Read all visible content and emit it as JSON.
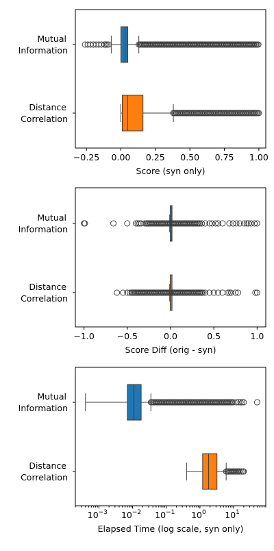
{
  "colors": {
    "mutual": "#1f77b4",
    "distance": "#ff7f0e",
    "line": "#3d3d3d"
  },
  "chart_data": [
    {
      "type": "box",
      "xlabel": "Score (syn only)",
      "xscale": "linear",
      "xlim": [
        -0.33,
        1.05
      ],
      "ticks": [
        -0.25,
        0.0,
        0.25,
        0.5,
        0.75,
        1.0
      ],
      "tick_labels": [
        "−0.25",
        "0.00",
        "0.25",
        "0.50",
        "0.75",
        "1.00"
      ],
      "categories": [
        {
          "label_l1": "Mutual",
          "label_l2": "Information",
          "color": "#1f77b4",
          "whisker_low": -0.07,
          "q1": 0.0,
          "median": 0.03,
          "q3": 0.05,
          "whisker_high": 0.13,
          "outliers_low": [
            -0.26,
            -0.24,
            -0.22,
            -0.2,
            -0.18,
            -0.16,
            -0.14,
            -0.12,
            -0.11,
            -0.1,
            -0.09
          ],
          "outliers_dense": [
            0.13,
            1.0
          ]
        },
        {
          "label_l1": "Distance",
          "label_l2": "Correlation",
          "color": "#ff7f0e",
          "whisker_low": 0.0,
          "q1": 0.01,
          "median": 0.05,
          "q3": 0.16,
          "whisker_high": 0.38,
          "outliers_low": [],
          "outliers_dense": [
            0.38,
            1.0
          ]
        }
      ]
    },
    {
      "type": "box",
      "xlabel": "Score Diff (orig - syn)",
      "xscale": "linear",
      "xlim": [
        -1.1,
        1.1
      ],
      "ticks": [
        -1.0,
        -0.5,
        0.0,
        0.5,
        1.0
      ],
      "tick_labels": [
        "−1.0",
        "−0.5",
        "0.0",
        "0.5",
        "1.0"
      ],
      "categories": [
        {
          "label_l1": "Mutual",
          "label_l2": "Information",
          "color": "#1f77b4",
          "whisker_low": -0.01,
          "q1": -0.003,
          "median": 0.0,
          "q3": 0.003,
          "whisker_high": 0.01,
          "outliers_low": [
            -1.0,
            -0.99,
            -0.66,
            -0.5,
            -0.4,
            -0.38,
            -0.36,
            -0.34,
            -0.3,
            -0.28
          ],
          "outliers_high": [
            0.36,
            0.4,
            0.45,
            0.48,
            0.52,
            0.55,
            0.6,
            0.68,
            0.72,
            0.76,
            0.8,
            0.85,
            0.88,
            0.9,
            0.93,
            0.97,
            1.0
          ],
          "outliers_dense": [
            -0.27,
            0.35
          ]
        },
        {
          "label_l1": "Distance",
          "label_l2": "Correlation",
          "color": "#ff7f0e",
          "whisker_low": -0.01,
          "q1": -0.003,
          "median": 0.0,
          "q3": 0.003,
          "whisker_high": 0.01,
          "outliers_low": [
            -0.62,
            -0.55,
            -0.5,
            -0.47
          ],
          "outliers_high": [
            0.4,
            0.45,
            0.5,
            0.55,
            0.6,
            0.66,
            0.68,
            0.7,
            0.75,
            0.78,
            0.98,
            1.0
          ],
          "outliers_dense": [
            -0.45,
            0.38
          ]
        }
      ]
    },
    {
      "type": "box",
      "xlabel": "Elapsed Time (log scale, syn only)",
      "xscale": "log",
      "xlim": [
        0.0002,
        90
      ],
      "ticks": [
        0.001,
        0.01,
        0.1,
        1,
        10
      ],
      "tick_labels": [
        "10^-3",
        "10^-2",
        "10^-1",
        "10^0",
        "10^1"
      ],
      "categories": [
        {
          "label_l1": "Mutual",
          "label_l2": "Information",
          "color": "#1f77b4",
          "whisker_low": 0.0004,
          "q1": 0.007,
          "median": 0.011,
          "q3": 0.018,
          "whisker_high": 0.035,
          "outliers_low": [],
          "outliers_high": [
            12,
            14,
            16,
            18,
            20,
            50
          ],
          "outliers_dense": [
            0.035,
            10
          ]
        },
        {
          "label_l1": "Distance",
          "label_l2": "Correlation",
          "color": "#ff7f0e",
          "whisker_low": 0.4,
          "q1": 1.2,
          "median": 1.8,
          "q3": 3.2,
          "whisker_high": 6.0,
          "outliers_low": [],
          "outliers_high": [
            15,
            17,
            19,
            20
          ],
          "outliers_dense": [
            6.0,
            14
          ]
        }
      ]
    }
  ]
}
